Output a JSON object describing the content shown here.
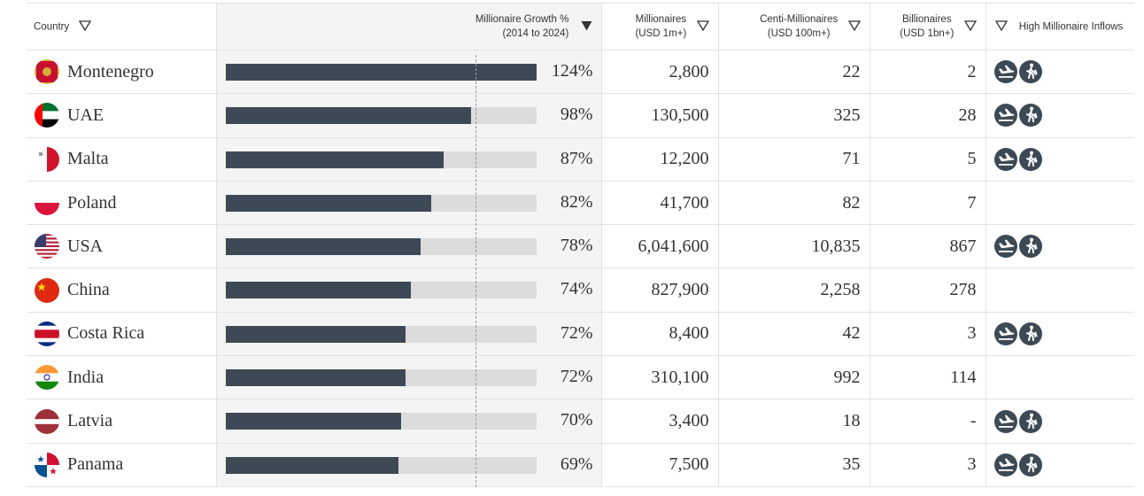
{
  "headers": {
    "country": "Country",
    "growth_line1": "Millionaire Growth %",
    "growth_line2": "(2014 to 2024)",
    "millionaires_line1": "Millionaires",
    "millionaires_line2": "(USD 1m+)",
    "centi_line1": "Centi-Millionaires",
    "centi_line2": "(USD 100m+)",
    "billionaires_line1": "Billionaires",
    "billionaires_line2": "(USD 1bn+)",
    "inflows": "High Millionaire Inflows"
  },
  "growth_scale_max": 124,
  "icons": [
    "plane-landing-icon",
    "walking-person-icon"
  ],
  "colors": {
    "bar_fill": "#3d4a55",
    "bar_track": "#dcdcdc",
    "icon_bg": "#3d4a55"
  },
  "rows": [
    {
      "country": "Montenegro",
      "flag": "montenegro-flag",
      "growth": 124,
      "growth_label": "124%",
      "millionaires": "2,800",
      "centi": "22",
      "billionaires": "2",
      "inflow": true
    },
    {
      "country": "UAE",
      "flag": "uae-flag",
      "growth": 98,
      "growth_label": "98%",
      "millionaires": "130,500",
      "centi": "325",
      "billionaires": "28",
      "inflow": true
    },
    {
      "country": "Malta",
      "flag": "malta-flag",
      "growth": 87,
      "growth_label": "87%",
      "millionaires": "12,200",
      "centi": "71",
      "billionaires": "5",
      "inflow": true
    },
    {
      "country": "Poland",
      "flag": "poland-flag",
      "growth": 82,
      "growth_label": "82%",
      "millionaires": "41,700",
      "centi": "82",
      "billionaires": "7",
      "inflow": false
    },
    {
      "country": "USA",
      "flag": "usa-flag",
      "growth": 78,
      "growth_label": "78%",
      "millionaires": "6,041,600",
      "centi": "10,835",
      "billionaires": "867",
      "inflow": true
    },
    {
      "country": "China",
      "flag": "china-flag",
      "growth": 74,
      "growth_label": "74%",
      "millionaires": "827,900",
      "centi": "2,258",
      "billionaires": "278",
      "inflow": false
    },
    {
      "country": "Costa Rica",
      "flag": "costa-rica-flag",
      "growth": 72,
      "growth_label": "72%",
      "millionaires": "8,400",
      "centi": "42",
      "billionaires": "3",
      "inflow": true
    },
    {
      "country": "India",
      "flag": "india-flag",
      "growth": 72,
      "growth_label": "72%",
      "millionaires": "310,100",
      "centi": "992",
      "billionaires": "114",
      "inflow": false
    },
    {
      "country": "Latvia",
      "flag": "latvia-flag",
      "growth": 70,
      "growth_label": "70%",
      "millionaires": "3,400",
      "centi": "18",
      "billionaires": "-",
      "inflow": true
    },
    {
      "country": "Panama",
      "flag": "panama-flag",
      "growth": 69,
      "growth_label": "69%",
      "millionaires": "7,500",
      "centi": "35",
      "billionaires": "3",
      "inflow": true
    }
  ]
}
